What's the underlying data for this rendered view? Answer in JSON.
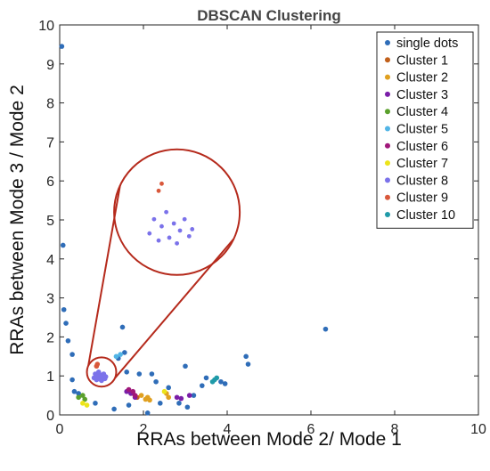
{
  "chart_data": {
    "type": "scatter",
    "title": "DBSCAN Clustering",
    "xlabel": "RRAs between Mode 2/ Mode 1",
    "ylabel": "RRAs between Mode 3 / Mode 2",
    "xlim": [
      0,
      10
    ],
    "ylim": [
      0,
      10
    ],
    "xticks": [
      "0",
      "2",
      "4",
      "6",
      "8",
      "10"
    ],
    "yticks": [
      "0",
      "1",
      "2",
      "3",
      "4",
      "5",
      "6",
      "7",
      "8",
      "9",
      "10"
    ],
    "grid": false,
    "legend": "top-right",
    "series": [
      {
        "name": "single dots",
        "color": "#2f6db8",
        "x": [
          0.05,
          0.08,
          0.1,
          0.15,
          0.2,
          0.3,
          0.35,
          0.45,
          1.4,
          1.55,
          1.6,
          1.9,
          2.2,
          2.3,
          2.6,
          3.0,
          3.4,
          3.5,
          3.85,
          3.95,
          4.45,
          4.5,
          6.35,
          0.85,
          1.3,
          1.65,
          2.4,
          2.1,
          3.2,
          3.05,
          2.85,
          0.3,
          1.5
        ],
        "y": [
          9.45,
          4.35,
          2.7,
          2.35,
          1.9,
          0.9,
          0.6,
          0.55,
          1.45,
          1.6,
          1.1,
          1.05,
          1.05,
          0.85,
          0.7,
          1.25,
          0.75,
          0.95,
          0.85,
          0.8,
          1.5,
          1.3,
          2.2,
          0.3,
          0.15,
          0.25,
          0.3,
          0.05,
          0.5,
          0.2,
          0.3,
          1.55,
          2.25
        ]
      },
      {
        "name": "Cluster 1",
        "color": "#c1601b",
        "x": [
          1.75,
          1.85
        ],
        "y": [
          0.55,
          0.45
        ]
      },
      {
        "name": "Cluster 2",
        "color": "#e0a020",
        "x": [
          1.95,
          2.05,
          2.1,
          2.15,
          2.55,
          2.6
        ],
        "y": [
          0.5,
          0.4,
          0.45,
          0.38,
          0.55,
          0.45
        ]
      },
      {
        "name": "Cluster 3",
        "color": "#7a1ea8",
        "x": [
          1.6,
          1.7,
          1.8,
          2.8,
          2.9,
          3.1
        ],
        "y": [
          0.6,
          0.55,
          0.45,
          0.45,
          0.42,
          0.5
        ]
      },
      {
        "name": "Cluster 4",
        "color": "#5aa02c",
        "x": [
          0.45,
          0.55,
          0.6
        ],
        "y": [
          0.45,
          0.5,
          0.4
        ]
      },
      {
        "name": "Cluster 5",
        "color": "#52b5e6",
        "x": [
          1.35,
          1.45
        ],
        "y": [
          1.5,
          1.55
        ]
      },
      {
        "name": "Cluster 6",
        "color": "#a0177a",
        "x": [
          1.65,
          1.75,
          1.8
        ],
        "y": [
          0.65,
          0.6,
          0.5
        ]
      },
      {
        "name": "Cluster 7",
        "color": "#ece41a",
        "x": [
          0.55,
          0.65,
          2.5
        ],
        "y": [
          0.3,
          0.25,
          0.6
        ]
      },
      {
        "name": "Cluster 8",
        "color": "#7b72ea",
        "x": [
          0.82,
          0.85,
          0.88,
          0.9,
          0.93,
          0.95,
          0.98,
          1.0,
          1.02,
          1.05,
          1.08,
          1.1
        ],
        "y": [
          0.95,
          1.05,
          0.9,
          1.0,
          1.1,
          0.92,
          1.02,
          0.88,
          0.97,
          1.05,
          0.93,
          0.98
        ]
      },
      {
        "name": "Cluster 9",
        "color": "#d9583b",
        "x": [
          0.88,
          0.9
        ],
        "y": [
          1.25,
          1.3
        ]
      },
      {
        "name": "Cluster 10",
        "color": "#1f9aa8",
        "x": [
          3.65,
          3.7,
          3.75
        ],
        "y": [
          0.85,
          0.9,
          0.95
        ]
      }
    ],
    "annotations": [
      {
        "type": "zoom-circle",
        "color": "#b52a1c",
        "zoom_center": [
          1.0,
          1.1
        ],
        "zoom_radius": 0.35,
        "magnified_center": [
          2.8,
          5.2
        ],
        "magnified_radius": 1.5
      }
    ]
  }
}
